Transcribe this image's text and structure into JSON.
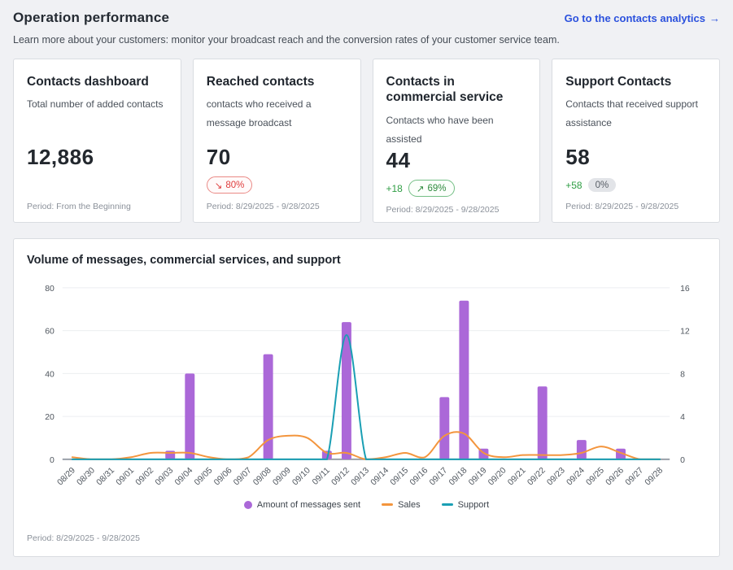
{
  "page": {
    "title": "Operation performance",
    "subtitle": "Learn more about your customers: monitor your broadcast reach and the conversion rates of your customer service team.",
    "analytics_link_label": "Go to the contacts analytics",
    "analytics_link_arrow": "→"
  },
  "cards": [
    {
      "title": "Contacts dashboard",
      "description": "Total number of added contacts",
      "value": "12,886",
      "period": "Period: From the Beginning"
    },
    {
      "title": "Reached contacts",
      "description": "contacts who received a message broadcast",
      "value": "70",
      "badge": {
        "arrow": "↘",
        "text": "80%",
        "type": "negative"
      },
      "period": "Period: 8/29/2025 - 9/28/2025"
    },
    {
      "title": "Contacts in commercial service",
      "description": "Contacts who have been assisted",
      "value": "44",
      "delta": "+18",
      "badge": {
        "arrow": "↗",
        "text": "69%",
        "type": "positive"
      },
      "period": "Period: 8/29/2025 - 9/28/2025"
    },
    {
      "title": "Support Contacts",
      "description": "Contacts that received support assistance",
      "value": "58",
      "delta": "+58",
      "badge": {
        "arrow": "",
        "text": "0%",
        "type": "neutral"
      },
      "period": "Period: 8/29/2025 - 9/28/2025"
    }
  ],
  "chart_card": {
    "period": "Period: 8/29/2025 - 9/28/2025"
  },
  "chart_data": {
    "type": "bar",
    "title": "Volume of messages, commercial services, and support",
    "categories": [
      "08/29",
      "08/30",
      "08/31",
      "09/01",
      "09/02",
      "09/03",
      "09/04",
      "09/05",
      "09/06",
      "09/07",
      "09/08",
      "09/09",
      "09/10",
      "09/11",
      "09/12",
      "09/13",
      "09/14",
      "09/15",
      "09/16",
      "09/17",
      "09/18",
      "09/19",
      "09/20",
      "09/21",
      "09/22",
      "09/23",
      "09/24",
      "09/25",
      "09/26",
      "09/27",
      "09/28"
    ],
    "series": [
      {
        "name": "Amount of messages sent",
        "type": "bar",
        "color": "#ab68d8",
        "values": [
          0,
          0,
          0,
          0,
          0,
          4,
          40,
          0,
          0,
          0,
          49,
          0,
          0,
          4,
          64,
          0,
          0,
          0,
          0,
          29,
          74,
          5,
          0,
          0,
          34,
          0,
          9,
          0,
          5,
          0,
          0
        ]
      },
      {
        "name": "Sales",
        "type": "line",
        "color": "#f3953d",
        "values": [
          1,
          0,
          0,
          1,
          3,
          3,
          3,
          1,
          0,
          1,
          9,
          11,
          10,
          3,
          3,
          0,
          1,
          3,
          1,
          11,
          12,
          3,
          1,
          2,
          2,
          2,
          3,
          6,
          3,
          0,
          0
        ]
      },
      {
        "name": "Support",
        "type": "line",
        "color": "#1a9fb4",
        "values": [
          0,
          0,
          0,
          0,
          0,
          0,
          0,
          0,
          0,
          0,
          0,
          0,
          0,
          0,
          58,
          0,
          0,
          0,
          0,
          0,
          0,
          0,
          0,
          0,
          0,
          0,
          0,
          0,
          0,
          0,
          0
        ]
      }
    ],
    "left_axis": {
      "ticks": [
        0,
        20,
        40,
        60,
        80
      ],
      "range": [
        0,
        80
      ]
    },
    "right_axis": {
      "ticks": [
        0,
        4,
        8,
        12,
        16
      ],
      "range": [
        0,
        16
      ]
    },
    "grid": true,
    "legend_position": "bottom"
  }
}
